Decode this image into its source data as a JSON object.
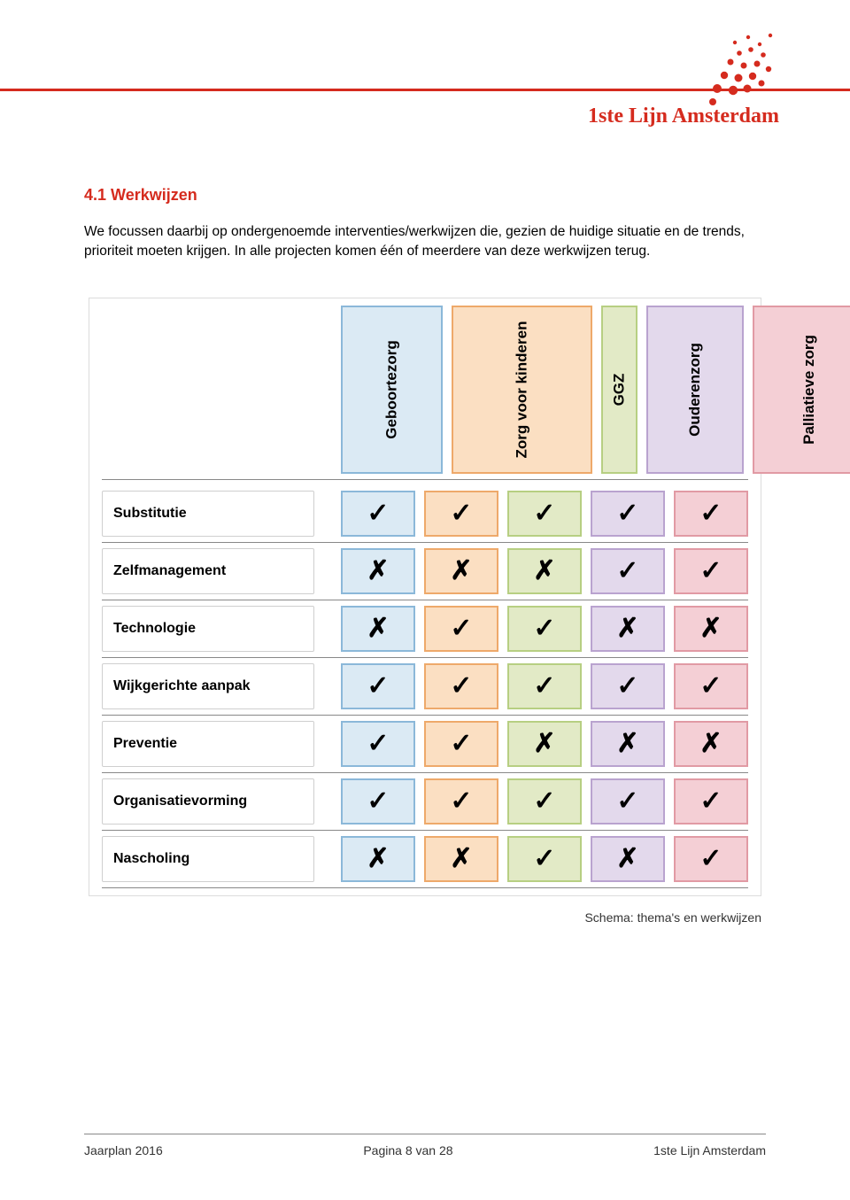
{
  "brand": "1ste Lijn Amsterdam",
  "section_title": "4.1 Werkwijzen",
  "body_text": "We focussen daarbij op ondergenoemde interventies/werkwijzen die, gezien de huidige situatie en de trends, prioriteit moeten krijgen. In alle projecten komen één of meerdere van deze werkwijzen terug.",
  "caption": "Schema: thema's en werkwijzen",
  "matrix": {
    "columns": [
      {
        "label": "Geboortezorg",
        "bg": "#dbeaf4",
        "border": "#8bb8d9"
      },
      {
        "label": "Zorg voor kinderen",
        "bg": "#fbdfc2",
        "border": "#eea96a"
      },
      {
        "label": "GGZ",
        "bg": "#e2eac6",
        "border": "#b7cf82"
      },
      {
        "label": "Ouderenzorg",
        "bg": "#e3d9ec",
        "border": "#b9a3cf"
      },
      {
        "label": "Palliatieve zorg",
        "bg": "#f4cfd5",
        "border": "#e19aa4"
      }
    ],
    "rows": [
      {
        "label": "Substitutie",
        "values": [
          "✓",
          "✓",
          "✓",
          "✓",
          "✓"
        ]
      },
      {
        "label": "Zelfmanagement",
        "values": [
          "✗",
          "✗",
          "✗",
          "✓",
          "✓"
        ]
      },
      {
        "label": "Technologie",
        "values": [
          "✗",
          "✓",
          "✓",
          "✗",
          "✗"
        ]
      },
      {
        "label": "Wijkgerichte aanpak",
        "values": [
          "✓",
          "✓",
          "✓",
          "✓",
          "✓"
        ]
      },
      {
        "label": "Preventie",
        "values": [
          "✓",
          "✓",
          "✗",
          "✗",
          "✗"
        ]
      },
      {
        "label": "Organisatievorming",
        "values": [
          "✓",
          "✓",
          "✓",
          "✓",
          "✓"
        ]
      },
      {
        "label": "Nascholing",
        "values": [
          "✗",
          "✗",
          "✓",
          "✗",
          "✓"
        ]
      }
    ]
  },
  "footer": {
    "left": "Jaarplan 2016",
    "center": "Pagina 8 van 28",
    "right": "1ste Lijn Amsterdam"
  },
  "colors": {
    "accent": "#d52b1e"
  }
}
